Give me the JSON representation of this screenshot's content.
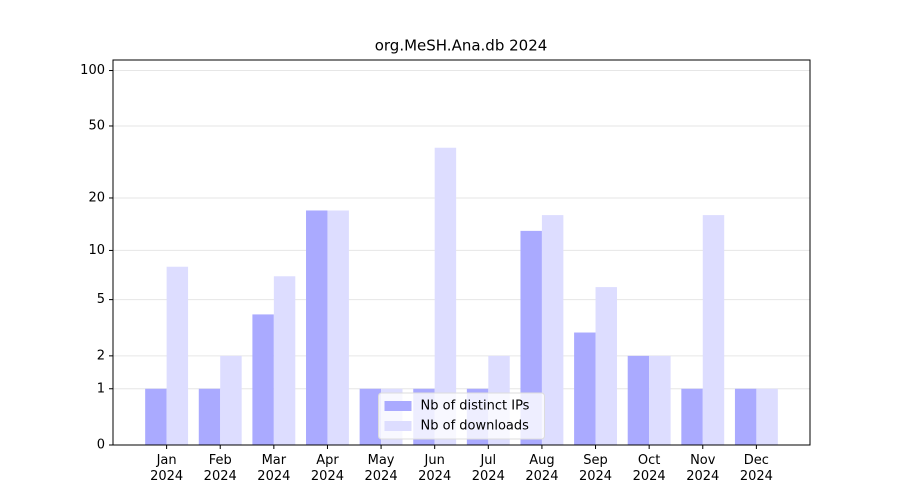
{
  "chart_data": {
    "type": "bar",
    "title": "org.MeSH.Ana.db 2024",
    "categories": [
      "Jan\n2024",
      "Feb\n2024",
      "Mar\n2024",
      "Apr\n2024",
      "May\n2024",
      "Jun\n2024",
      "Jul\n2024",
      "Aug\n2024",
      "Sep\n2024",
      "Oct\n2024",
      "Nov\n2024",
      "Dec\n2024"
    ],
    "series": [
      {
        "name": "Nb of distinct IPs",
        "color": "#aaaaff",
        "values": [
          1,
          1,
          4,
          17,
          1,
          1,
          1,
          13,
          3,
          2,
          1,
          1
        ]
      },
      {
        "name": "Nb of downloads",
        "color": "#ddddff",
        "values": [
          8,
          2,
          7,
          17,
          1,
          38,
          2,
          16,
          6,
          2,
          16,
          1
        ]
      }
    ],
    "yscale": "log1p",
    "ylim": [
      0,
      114
    ],
    "yticks": [
      0,
      1,
      2,
      5,
      10,
      20,
      50,
      100
    ],
    "grid": true,
    "legend": "lower center"
  }
}
